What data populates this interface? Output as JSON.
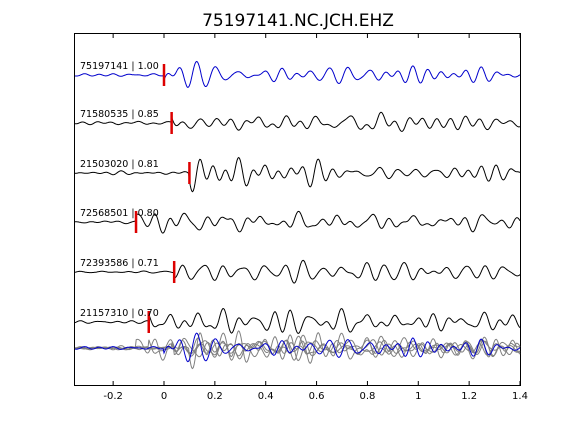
{
  "chart_data": {
    "type": "line",
    "title": "75197141.NC.JCH.EHZ",
    "xlim": [
      -0.35,
      1.4
    ],
    "x_ticks": [
      "-0.2",
      "0",
      "0.2",
      "0.4",
      "0.6",
      "0.8",
      "1",
      "1.2",
      "1.4"
    ],
    "x_tick_values": [
      -0.2,
      0,
      0.2,
      0.4,
      0.6,
      0.8,
      1.0,
      1.2,
      1.4
    ],
    "grid": false,
    "colors": {
      "reference_trace": "#0000cc",
      "trace": "#000000",
      "stack_trace": "#808080",
      "pick_marker": "#dd0000"
    },
    "series": [
      {
        "name": "75197141 | 1.00",
        "event_id": "75197141",
        "correlation": 1.0,
        "pick_time": 0.0,
        "reference": true
      },
      {
        "name": "71580535 | 0.85",
        "event_id": "71580535",
        "correlation": 0.85,
        "pick_time": 0.03
      },
      {
        "name": "21503020 | 0.81",
        "event_id": "21503020",
        "correlation": 0.81,
        "pick_time": 0.1
      },
      {
        "name": "72568501 | 0.80",
        "event_id": "72568501",
        "correlation": 0.8,
        "pick_time": -0.11
      },
      {
        "name": "72393586 | 0.71",
        "event_id": "72393586",
        "correlation": 0.71,
        "pick_time": 0.04
      },
      {
        "name": "21157310 | 0.70",
        "event_id": "21157310",
        "correlation": 0.7,
        "pick_time": -0.06
      }
    ],
    "overlay": {
      "description_visible": false,
      "traces_overlaid": 6
    }
  }
}
